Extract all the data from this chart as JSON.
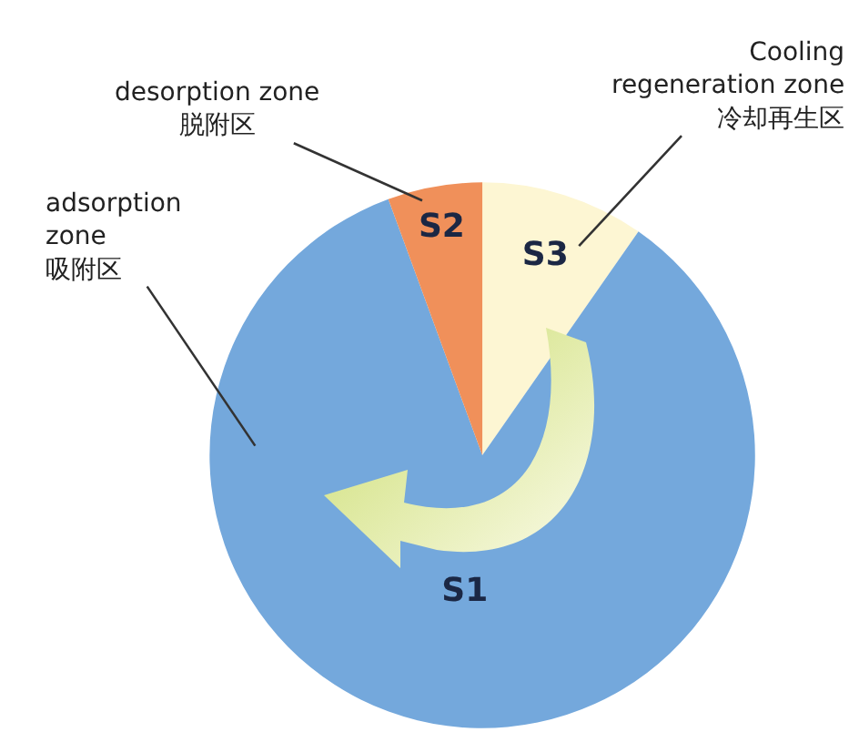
{
  "chart_data": {
    "type": "pie",
    "categories": [
      "S3",
      "S1",
      "S2"
    ],
    "values": [
      9.7,
      84.7,
      5.6
    ],
    "colors": [
      "#fdf6d3",
      "#74a8dc",
      "#f0905a"
    ],
    "annotations": [
      "Cooling\nregeneration zone\n冷却再生区",
      "adsorption\nzone\n吸附区",
      "desorption zone\n脱附区"
    ],
    "legend": false
  }
}
